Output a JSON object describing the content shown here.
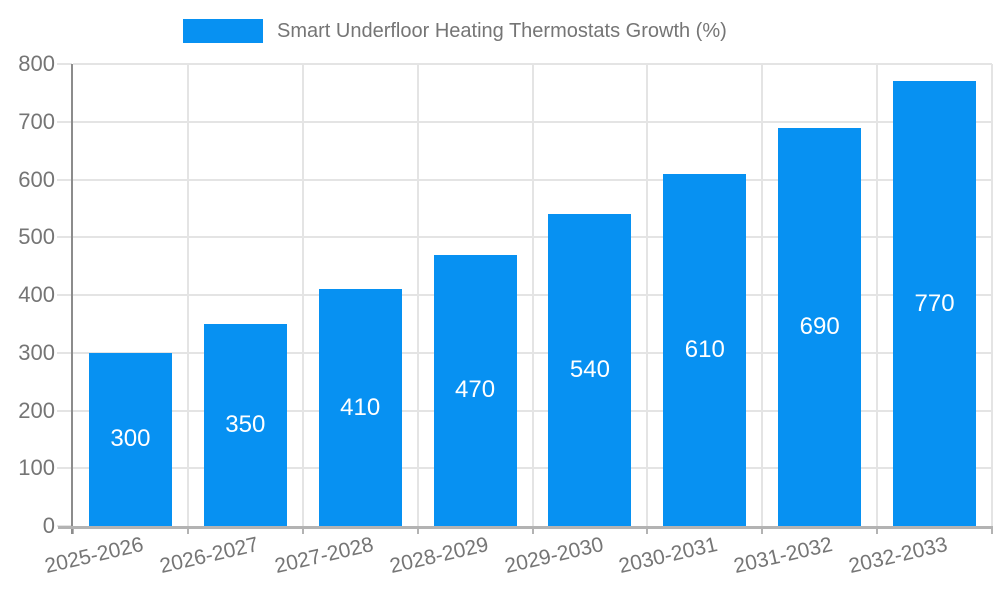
{
  "legend": {
    "label": "Smart Underfloor Heating Thermostats Growth (%)"
  },
  "chart_data": {
    "type": "bar",
    "title": "Smart Underfloor Heating Thermostats Growth (%)",
    "series_name": "Smart Underfloor Heating Thermostats Growth (%)",
    "categories": [
      "2025-2026",
      "2026-2027",
      "2027-2028",
      "2028-2029",
      "2029-2030",
      "2030-2031",
      "2031-2032",
      "2032-2033"
    ],
    "values": [
      300,
      350,
      410,
      470,
      540,
      610,
      690,
      770
    ],
    "value_labels_position": "inside-center",
    "xlabel": "",
    "ylabel": "",
    "ylim": [
      0,
      800
    ],
    "yticks": [
      0,
      100,
      200,
      300,
      400,
      500,
      600,
      700,
      800
    ],
    "grid": "both",
    "legend_position": "top",
    "xtick_rotation_deg": -13,
    "colors": {
      "bar": "#0791f2",
      "grid": "#e4e4e4",
      "axis_y": "#8c8c8c",
      "axis_x": "#b3b3b3",
      "tick_text": "#757575",
      "value_text": "#ffffff"
    }
  }
}
